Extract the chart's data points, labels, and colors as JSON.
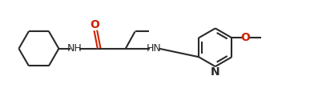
{
  "background_color": "#ffffff",
  "bond_color": "#2a2a2a",
  "text_color": "#2a2a2a",
  "O_color": "#cc2200",
  "N_color": "#2a2a2a",
  "figsize": [
    3.87,
    1.2
  ],
  "dpi": 100,
  "bond_lw": 1.5,
  "font_size": 9.0,
  "xlim": [
    0,
    10.5
  ],
  "ylim": [
    0,
    3.0
  ]
}
